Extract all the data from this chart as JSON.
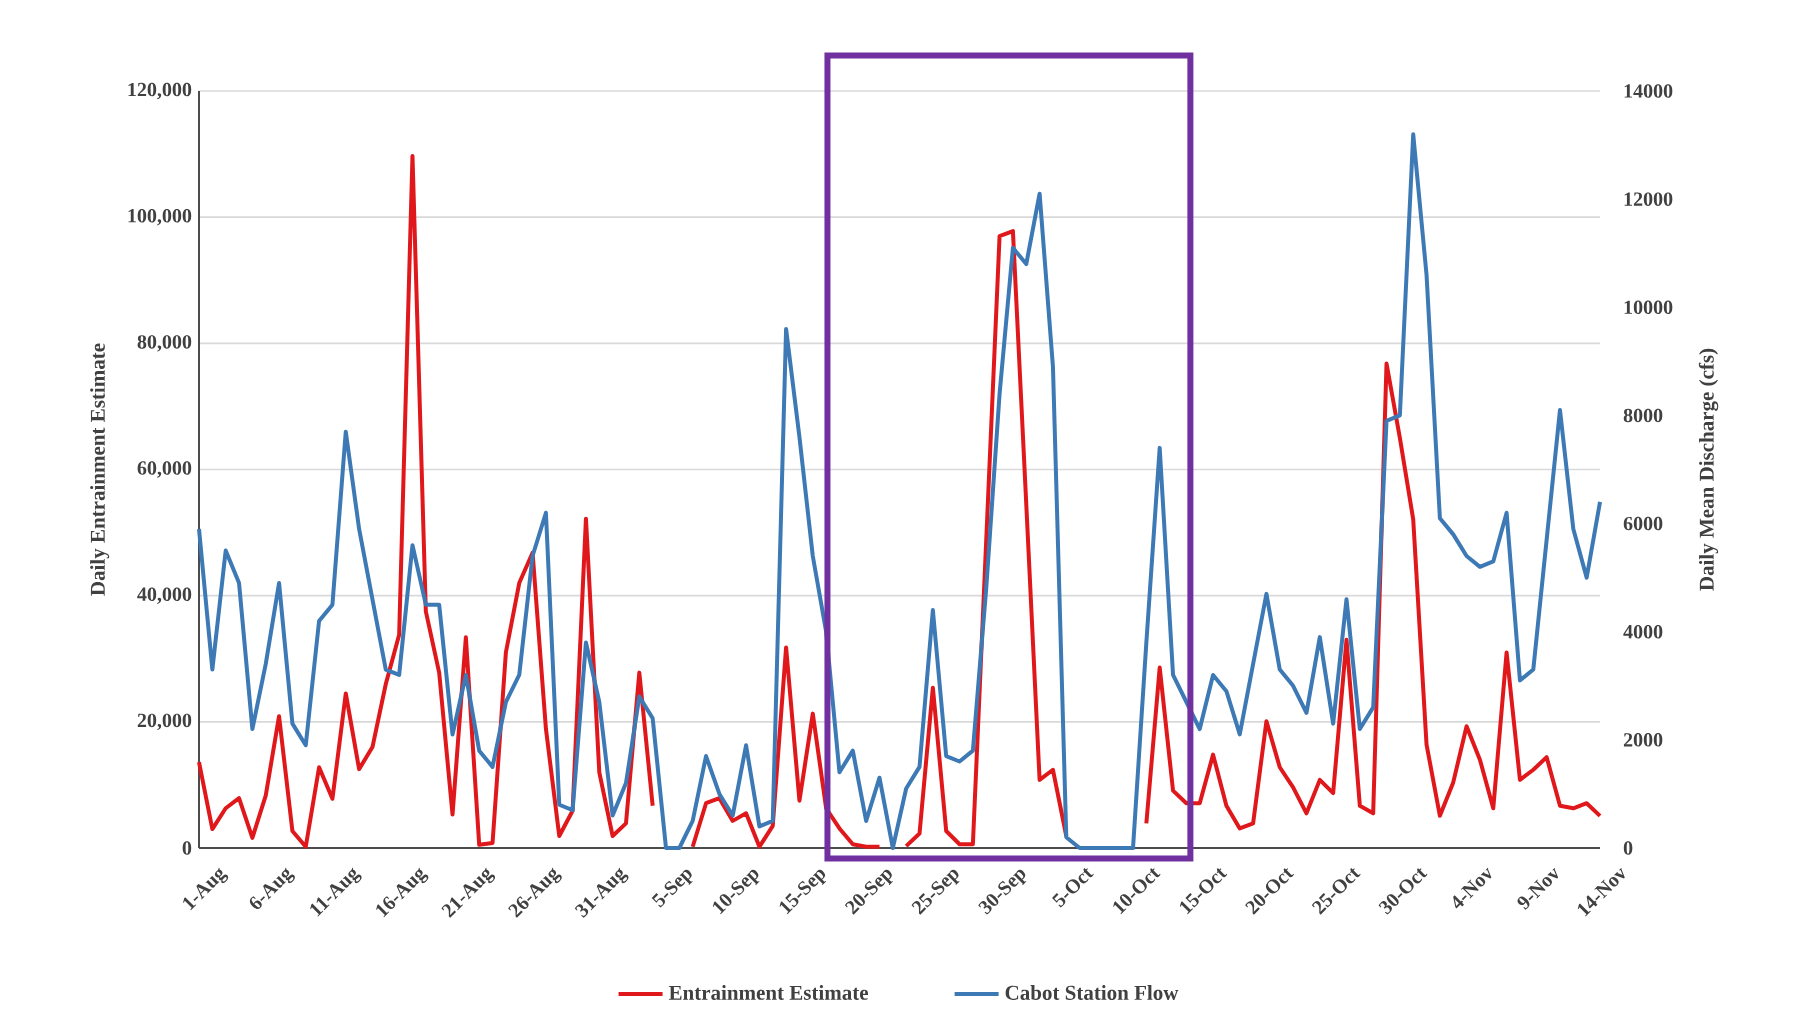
{
  "chart_data": {
    "type": "line",
    "categories": [
      "1-Aug",
      null,
      null,
      null,
      null,
      "6-Aug",
      null,
      null,
      null,
      null,
      "11-Aug",
      null,
      null,
      null,
      null,
      "16-Aug",
      null,
      null,
      null,
      null,
      "21-Aug",
      null,
      null,
      null,
      null,
      "26-Aug",
      null,
      null,
      null,
      null,
      "31-Aug",
      null,
      null,
      null,
      null,
      "5-Sep",
      null,
      null,
      null,
      null,
      "10-Sep",
      null,
      null,
      null,
      null,
      "15-Sep",
      null,
      null,
      null,
      null,
      "20-Sep",
      null,
      null,
      null,
      null,
      "25-Sep",
      null,
      null,
      null,
      null,
      "30-Sep",
      null,
      null,
      null,
      null,
      "5-Oct",
      null,
      null,
      null,
      null,
      "10-Oct",
      null,
      null,
      null,
      null,
      "15-Oct",
      null,
      null,
      null,
      null,
      "20-Oct",
      null,
      null,
      null,
      null,
      "25-Oct",
      null,
      null,
      null,
      null,
      "30-Oct",
      null,
      null,
      null,
      null,
      "4-Nov",
      null,
      null,
      null,
      null,
      "9-Nov",
      null,
      null,
      null,
      null,
      "14-Nov"
    ],
    "series": [
      {
        "name": "Entrainment Estimate",
        "color": "#e0181b",
        "values": [
          13600,
          3000,
          6300,
          7900,
          1600,
          8300,
          20900,
          2700,
          200,
          12800,
          7800,
          24500,
          12500,
          16000,
          26000,
          33800,
          109700,
          37500,
          27800,
          5300,
          33400,
          500,
          800,
          31000,
          42000,
          46800,
          18900,
          1900,
          5900,
          52200,
          12000,
          1900,
          3900,
          27800,
          6700,
          null,
          null,
          200,
          7100,
          7900,
          4300,
          5500,
          200,
          3500,
          31800,
          7500,
          21300,
          6300,
          3100,
          600,
          200,
          200,
          null,
          300,
          2300,
          25400,
          2700,
          600,
          600,
          48800,
          97000,
          97800,
          54500,
          10800,
          12400,
          1900,
          null,
          null,
          null,
          null,
          null,
          3900,
          28600,
          9100,
          7100,
          7100,
          14800,
          6700,
          3100,
          3900,
          20100,
          12800,
          9600,
          5500,
          10800,
          8700,
          33000,
          6700,
          5500,
          76800,
          65000,
          52100,
          16400,
          5100,
          10400,
          19300,
          14000,
          6300,
          31000,
          10800,
          12400,
          14400,
          6700,
          6300,
          7100,
          5100
        ]
      },
      {
        "name": "Cabot Station Flow",
        "color": "#3d79b5",
        "axis": "y2",
        "values": [
          5900,
          3300,
          5500,
          4900,
          2200,
          3400,
          4900,
          2300,
          1900,
          4200,
          4500,
          7700,
          5900,
          4600,
          3300,
          3200,
          5600,
          4500,
          4500,
          2100,
          3200,
          1800,
          1500,
          2700,
          3200,
          5400,
          6200,
          800,
          700,
          3800,
          2700,
          600,
          1200,
          2800,
          2400,
          0,
          0,
          500,
          1700,
          1000,
          600,
          1900,
          400,
          500,
          9600,
          7600,
          5400,
          4000,
          1400,
          1800,
          500,
          1300,
          0,
          1100,
          1500,
          4400,
          1700,
          1600,
          1800,
          4800,
          8400,
          11100,
          10800,
          12100,
          8900,
          200,
          0,
          0,
          0,
          0,
          0,
          3800,
          7400,
          3200,
          2700,
          2200,
          3200,
          2900,
          2100,
          3400,
          4700,
          3300,
          3000,
          2500,
          3900,
          2300,
          4600,
          2200,
          2600,
          7900,
          8000,
          13200,
          10600,
          6100,
          5800,
          5400,
          5200,
          5300,
          6200,
          3100,
          3300,
          5700,
          8100,
          5900,
          5000,
          6400
        ]
      }
    ],
    "ylabel": "Daily Entrainment Estimate",
    "y2label": "Daily Mean Discharge (cfs)",
    "ylim": [
      0,
      120000
    ],
    "yticks": [
      0,
      {
        "value": 20000,
        "label": "20,000"
      },
      {
        "value": 40000,
        "label": "40,000"
      },
      {
        "value": 60000,
        "label": "60,000"
      },
      {
        "value": 80000,
        "label": "80,000"
      },
      {
        "value": 100000,
        "label": "100,000"
      },
      {
        "value": 120000,
        "label": "120,000"
      }
    ],
    "y2lim": [
      0,
      14000
    ],
    "y2ticks": [
      0,
      2000,
      4000,
      6000,
      8000,
      10000,
      12000,
      14000
    ],
    "grid": "y",
    "legend": "bottom"
  }
}
